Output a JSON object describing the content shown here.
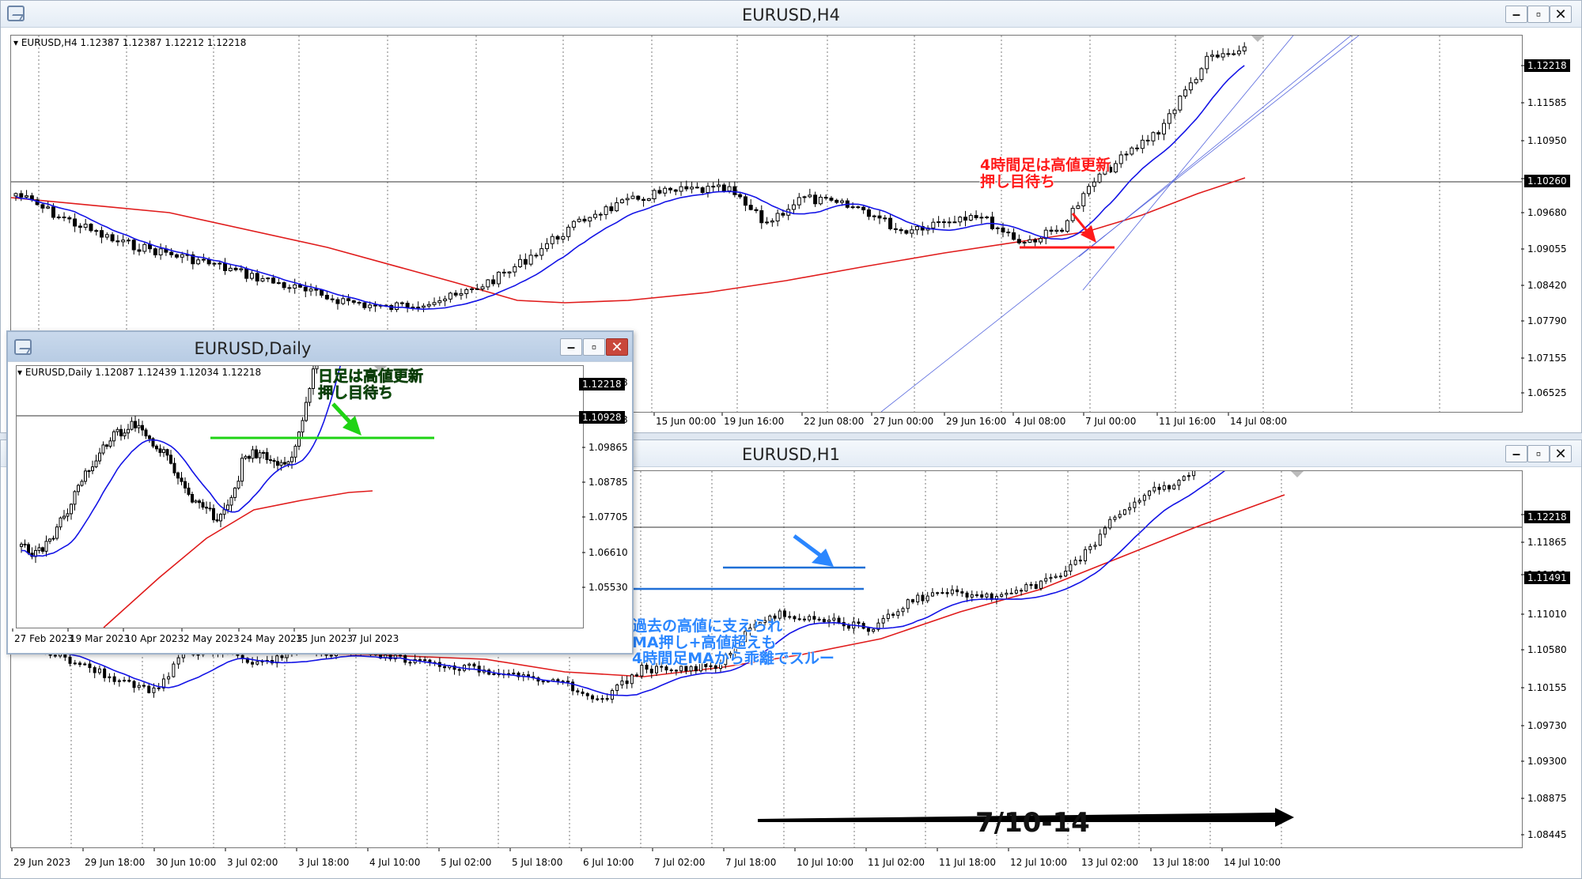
{
  "windows": {
    "h4": {
      "title": "EURUSD,H4",
      "info": "EURUSD,H4  1.12387 1.12387 1.12212 1.12218",
      "price_labels": [
        "1.12218",
        "1.11585",
        "1.10950",
        "1.10260",
        "1.09680",
        "1.09055",
        "1.08420",
        "1.07790",
        "1.07155",
        "1.06525"
      ],
      "current_price": "1.12218",
      "hline_price": "1.10260",
      "time_labels": [
        "15 Jun 00:00",
        "19 Jun 16:00",
        "22 Jun 08:00",
        "27 Jun 00:00",
        "29 Jun 16:00",
        "4 Jul 08:00",
        "7 Jul 00:00",
        "11 Jul 16:00",
        "14 Jul 08:00"
      ]
    },
    "daily": {
      "title": "EURUSD,Daily",
      "info": "EURUSD,Daily  1.12087 1.12439 1.12034 1.12218",
      "price_labels": [
        "1.12218",
        "1.10928",
        "1.09865",
        "1.08785",
        "1.07705",
        "1.06610",
        "1.05530"
      ],
      "current_price": "1.12218",
      "hline_price": "1.10928",
      "time_labels": [
        "27 Feb 2023",
        "19 Mar 2023",
        "10 Apr 2023",
        "2 May 2023",
        "24 May 2023",
        "15 Jun 2023",
        "7 Jul 2023"
      ]
    },
    "h1": {
      "title": "EURUSD,H1",
      "price_labels": [
        "1.12218",
        "1.11865",
        "1.11491",
        "1.11010",
        "1.10580",
        "1.10155",
        "1.09730",
        "1.09300",
        "1.08875",
        "1.08445"
      ],
      "current_price": "1.12218",
      "hline_price": "1.11491",
      "time_labels": [
        "29 Jun 2023",
        "29 Jun 18:00",
        "30 Jun 10:00",
        "3 Jul 02:00",
        "3 Jul 18:00",
        "4 Jul 10:00",
        "5 Jul 02:00",
        "5 Jul 18:00",
        "6 Jul 10:00",
        "7 Jul 02:00",
        "7 Jul 18:00",
        "10 Jul 10:00",
        "11 Jul 02:00",
        "11 Jul 18:00",
        "12 Jul 10:00",
        "13 Jul 02:00",
        "13 Jul 18:00",
        "14 Jul 10:00"
      ]
    }
  },
  "window_buttons": {
    "minimize": "–",
    "maximize": "▫",
    "close": "✕"
  },
  "annotations": {
    "h4_note": [
      "4時間足は高値更新",
      "押し目待ち"
    ],
    "daily_note": [
      "日足は高値更新",
      "押し目待ち"
    ],
    "h1_note": [
      "過去の高値に支えられ",
      "MA押し+高値超えも",
      "4時間足MAから乖離でスルー"
    ],
    "period": "7/10-14"
  },
  "colors": {
    "ma_fast": "#1414e6",
    "ma_slow": "#e01b1b",
    "support_line": "#1f6fd6",
    "daily_line": "#1fd314",
    "h4_resistance": "#ff1a1a"
  }
}
